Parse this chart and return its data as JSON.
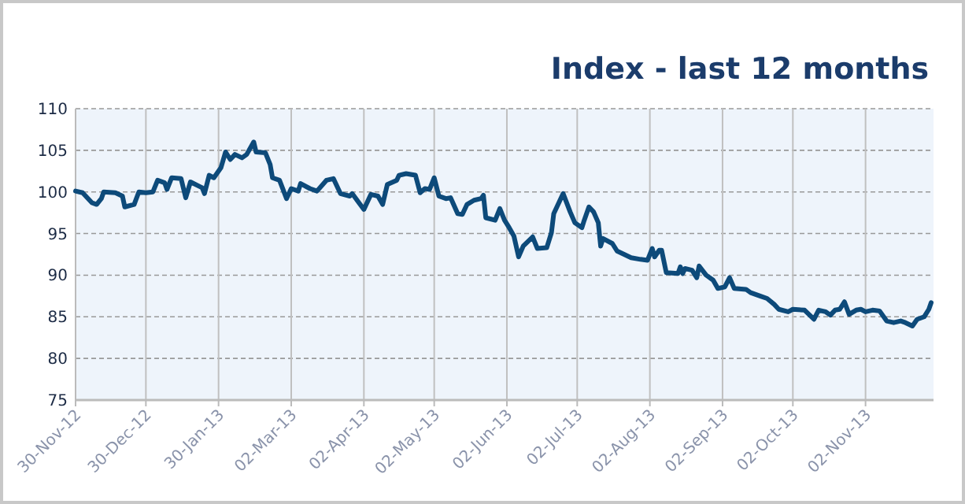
{
  "chart_data": {
    "type": "line",
    "title": "Index - last 12 months",
    "xlim": [
      "2012-11-30",
      "2013-12-01"
    ],
    "xticks": [
      {
        "value": "2012-11-30",
        "label": "30-Nov-12"
      },
      {
        "value": "2012-12-30",
        "label": "30-Dec-12"
      },
      {
        "value": "2013-01-30",
        "label": "30-Jan-13"
      },
      {
        "value": "2013-03-02",
        "label": "02-Mar-13"
      },
      {
        "value": "2013-04-02",
        "label": "02-Apr-13"
      },
      {
        "value": "2013-05-02",
        "label": "02-May-13"
      },
      {
        "value": "2013-06-02",
        "label": "02-Jun-13"
      },
      {
        "value": "2013-07-02",
        "label": "02-Jul-13"
      },
      {
        "value": "2013-08-02",
        "label": "02-Aug-13"
      },
      {
        "value": "2013-09-02",
        "label": "02-Sep-13"
      },
      {
        "value": "2013-10-02",
        "label": "02-Oct-13"
      },
      {
        "value": "2013-11-02",
        "label": "02-Nov-13"
      }
    ],
    "ylim": [
      75,
      110
    ],
    "yticks": [
      75,
      80,
      85,
      90,
      95,
      100,
      105,
      110
    ],
    "grid": true,
    "line_style": "solid",
    "x": [
      "2012-11-30",
      "2012-12-03",
      "2012-12-07",
      "2012-12-09",
      "2012-12-11",
      "2012-12-12",
      "2012-12-17",
      "2012-12-20",
      "2012-12-21",
      "2012-12-25",
      "2012-12-27",
      "2012-12-30",
      "2013-01-02",
      "2013-01-04",
      "2013-01-07",
      "2013-01-08",
      "2013-01-10",
      "2013-01-14",
      "2013-01-16",
      "2013-01-18",
      "2013-01-23",
      "2013-01-24",
      "2013-01-26",
      "2013-01-28",
      "2013-01-31",
      "2013-02-02",
      "2013-02-04",
      "2013-02-06",
      "2013-02-09",
      "2013-02-11",
      "2013-02-14",
      "2013-02-15",
      "2013-02-19",
      "2013-02-21",
      "2013-02-22",
      "2013-02-25",
      "2013-02-28",
      "2013-03-02",
      "2013-03-05",
      "2013-03-06",
      "2013-03-10",
      "2013-03-13",
      "2013-03-17",
      "2013-03-20",
      "2013-03-23",
      "2013-03-27",
      "2013-03-28",
      "2013-04-02",
      "2013-04-05",
      "2013-04-08",
      "2013-04-10",
      "2013-04-12",
      "2013-04-16",
      "2013-04-17",
      "2013-04-20",
      "2013-04-24",
      "2013-04-26",
      "2013-04-28",
      "2013-04-30",
      "2013-05-02",
      "2013-05-04",
      "2013-05-07",
      "2013-05-09",
      "2013-05-12",
      "2013-05-14",
      "2013-05-16",
      "2013-05-19",
      "2013-05-22",
      "2013-05-23",
      "2013-05-24",
      "2013-05-28",
      "2013-05-30",
      "2013-06-01",
      "2013-06-03",
      "2013-06-05",
      "2013-06-07",
      "2013-06-09",
      "2013-06-13",
      "2013-06-15",
      "2013-06-19",
      "2013-06-21",
      "2013-06-22",
      "2013-06-26",
      "2013-06-29",
      "2013-07-01",
      "2013-07-04",
      "2013-07-05",
      "2013-07-07",
      "2013-07-09",
      "2013-07-11",
      "2013-07-12",
      "2013-07-13",
      "2013-07-17",
      "2013-07-19",
      "2013-07-22",
      "2013-07-25",
      "2013-07-29",
      "2013-08-01",
      "2013-08-03",
      "2013-08-04",
      "2013-08-06",
      "2013-08-07",
      "2013-08-09",
      "2013-08-14",
      "2013-08-15",
      "2013-08-16",
      "2013-08-17",
      "2013-08-20",
      "2013-08-22",
      "2013-08-23",
      "2013-08-26",
      "2013-08-29",
      "2013-08-31",
      "2013-09-03",
      "2013-09-05",
      "2013-09-07",
      "2013-09-12",
      "2013-09-14",
      "2013-09-18",
      "2013-09-21",
      "2013-09-24",
      "2013-09-26",
      "2013-09-30",
      "2013-10-02",
      "2013-10-07",
      "2013-10-11",
      "2013-10-13",
      "2013-10-16",
      "2013-10-18",
      "2013-10-20",
      "2013-10-22",
      "2013-10-24",
      "2013-10-26",
      "2013-10-29",
      "2013-10-31",
      "2013-11-02",
      "2013-11-05",
      "2013-11-08",
      "2013-11-11",
      "2013-11-14",
      "2013-11-17",
      "2013-11-19",
      "2013-11-22",
      "2013-11-24",
      "2013-11-27",
      "2013-11-29",
      "2013-11-30"
    ],
    "series": [
      {
        "color": "#0d4a7a",
        "values": [
          100.1,
          99.9,
          98.7,
          98.5,
          99.2,
          100,
          99.9,
          99.5,
          98.2,
          98.5,
          100,
          99.9,
          100,
          101.4,
          101.1,
          100.3,
          101.7,
          101.6,
          99.3,
          101.2,
          100.5,
          99.8,
          102,
          101.7,
          102.9,
          104.8,
          103.9,
          104.5,
          104.1,
          104.5,
          106,
          104.8,
          104.7,
          103.3,
          101.7,
          101.4,
          99.2,
          100.4,
          100.1,
          101,
          100.4,
          100.1,
          101.4,
          101.6,
          99.8,
          99.5,
          99.8,
          97.9,
          99.7,
          99.5,
          98.5,
          100.9,
          101.4,
          102,
          102.2,
          102,
          99.9,
          100.4,
          100.3,
          101.7,
          99.5,
          99.2,
          99.3,
          97.4,
          97.3,
          98.5,
          99,
          99.2,
          99.6,
          96.9,
          96.6,
          98,
          96.6,
          95.7,
          94.7,
          92.2,
          93.5,
          94.6,
          93.2,
          93.3,
          95.1,
          97.4,
          99.8,
          97.6,
          96.3,
          95.7,
          96.6,
          98.2,
          97.6,
          96.3,
          93.5,
          94.4,
          93.8,
          92.9,
          92.5,
          92.1,
          91.9,
          91.8,
          93.2,
          92.2,
          93,
          93,
          90.3,
          90.2,
          91,
          90.2,
          90.8,
          90.6,
          89.7,
          91.1,
          90,
          89.4,
          88.4,
          88.6,
          89.7,
          88.4,
          88.3,
          87.9,
          87.5,
          87.2,
          86.5,
          85.9,
          85.6,
          85.9,
          85.8,
          84.7,
          85.8,
          85.6,
          85.2,
          85.8,
          85.9,
          86.8,
          85.3,
          85.8,
          85.9,
          85.6,
          85.8,
          85.7,
          84.5,
          84.3,
          84.5,
          84.3,
          83.9,
          84.7,
          85,
          85.9,
          86.7
        ]
      }
    ]
  }
}
